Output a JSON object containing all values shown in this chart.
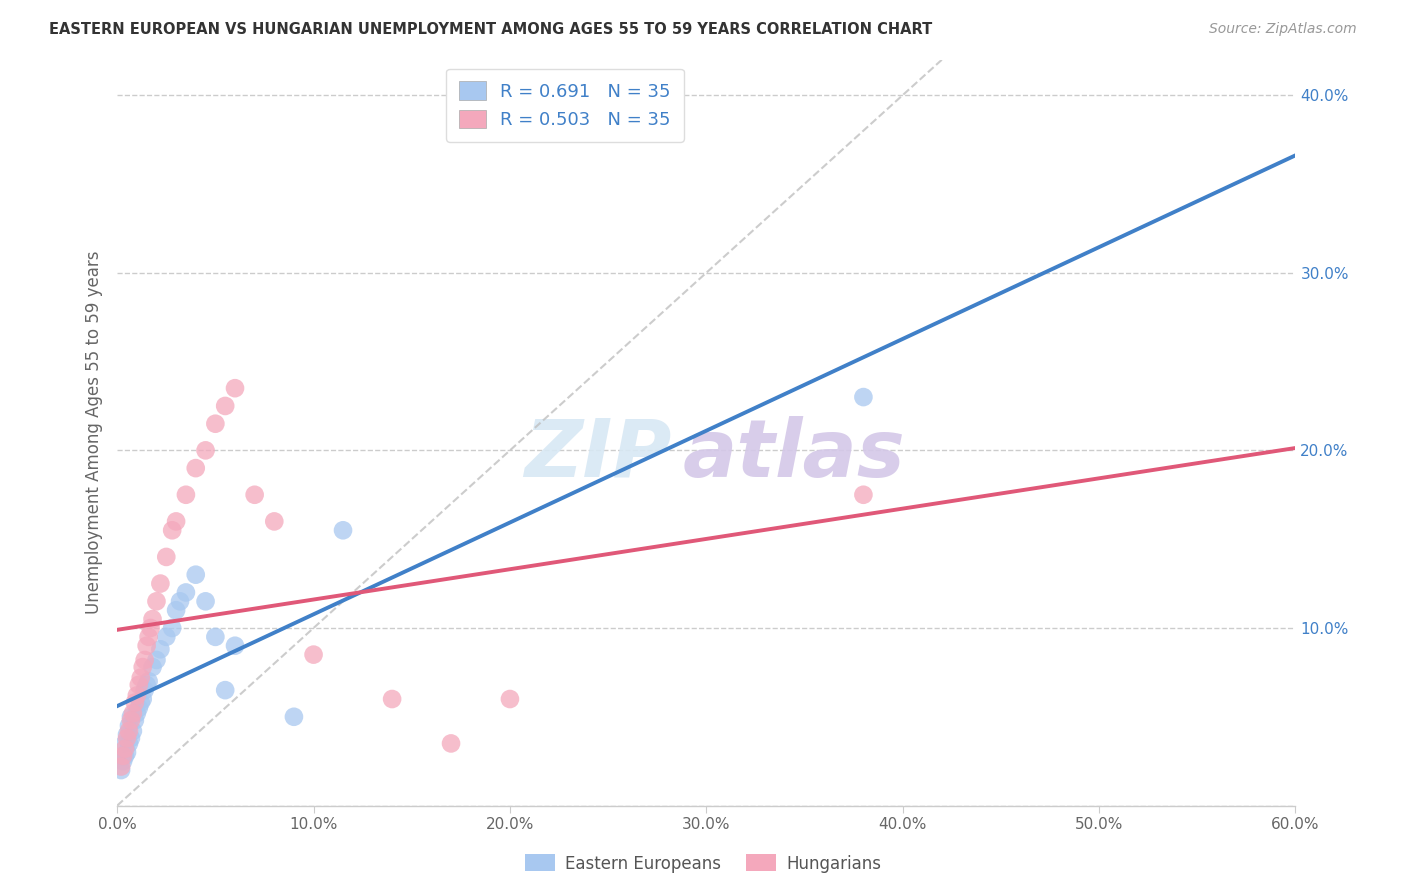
{
  "title": "EASTERN EUROPEAN VS HUNGARIAN UNEMPLOYMENT AMONG AGES 55 TO 59 YEARS CORRELATION CHART",
  "source": "Source: ZipAtlas.com",
  "ylabel": "Unemployment Among Ages 55 to 59 years",
  "xlim": [
    0.0,
    0.6
  ],
  "ylim": [
    0.0,
    0.42
  ],
  "xticks": [
    0.0,
    0.1,
    0.2,
    0.3,
    0.4,
    0.5,
    0.6
  ],
  "yticks": [
    0.0,
    0.1,
    0.2,
    0.3,
    0.4
  ],
  "xtick_labels": [
    "0.0%",
    "10.0%",
    "20.0%",
    "30.0%",
    "40.0%",
    "50.0%",
    "60.0%"
  ],
  "ytick_labels": [
    "",
    "10.0%",
    "20.0%",
    "30.0%",
    "40.0%"
  ],
  "blue_R": "0.691",
  "blue_N": "35",
  "pink_R": "0.503",
  "pink_N": "35",
  "blue_color": "#A8C8F0",
  "pink_color": "#F4A8BC",
  "blue_line_color": "#4080C8",
  "pink_line_color": "#E05878",
  "legend_label_blue": "Eastern Europeans",
  "legend_label_pink": "Hungarians",
  "watermark_zip": "ZIP",
  "watermark_atlas": "atlas",
  "blue_points_x": [
    0.002,
    0.003,
    0.004,
    0.004,
    0.005,
    0.005,
    0.006,
    0.006,
    0.007,
    0.007,
    0.008,
    0.009,
    0.01,
    0.011,
    0.012,
    0.013,
    0.014,
    0.015,
    0.016,
    0.018,
    0.02,
    0.022,
    0.025,
    0.028,
    0.03,
    0.032,
    0.035,
    0.04,
    0.045,
    0.05,
    0.055,
    0.06,
    0.09,
    0.38,
    0.115
  ],
  "blue_points_y": [
    0.02,
    0.025,
    0.028,
    0.035,
    0.03,
    0.04,
    0.035,
    0.045,
    0.038,
    0.05,
    0.042,
    0.048,
    0.052,
    0.055,
    0.058,
    0.06,
    0.065,
    0.068,
    0.07,
    0.078,
    0.082,
    0.088,
    0.095,
    0.1,
    0.11,
    0.115,
    0.12,
    0.13,
    0.115,
    0.095,
    0.065,
    0.09,
    0.05,
    0.23,
    0.155
  ],
  "pink_points_x": [
    0.002,
    0.003,
    0.004,
    0.005,
    0.006,
    0.007,
    0.008,
    0.009,
    0.01,
    0.011,
    0.012,
    0.013,
    0.014,
    0.015,
    0.016,
    0.017,
    0.018,
    0.02,
    0.022,
    0.025,
    0.028,
    0.03,
    0.035,
    0.04,
    0.045,
    0.05,
    0.055,
    0.06,
    0.07,
    0.08,
    0.1,
    0.14,
    0.17,
    0.2,
    0.38
  ],
  "pink_points_y": [
    0.022,
    0.028,
    0.032,
    0.038,
    0.042,
    0.048,
    0.052,
    0.058,
    0.062,
    0.068,
    0.072,
    0.078,
    0.082,
    0.09,
    0.095,
    0.1,
    0.105,
    0.115,
    0.125,
    0.14,
    0.155,
    0.16,
    0.175,
    0.19,
    0.2,
    0.215,
    0.225,
    0.235,
    0.175,
    0.16,
    0.085,
    0.06,
    0.035,
    0.06,
    0.175
  ],
  "background_color": "#FFFFFF",
  "grid_color": "#CCCCCC"
}
